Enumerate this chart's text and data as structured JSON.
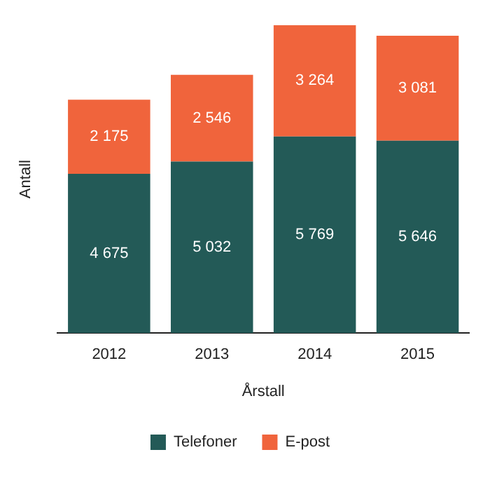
{
  "chart_data": {
    "type": "bar",
    "stacked": true,
    "xlabel": "Årstall",
    "ylabel": "Antall",
    "categories": [
      "2012",
      "2013",
      "2014",
      "2015"
    ],
    "series": [
      {
        "name": "Telefoner",
        "color": "#235a57",
        "values": [
          4675,
          5032,
          5769,
          5646
        ],
        "value_labels": [
          "4 675",
          "5 032",
          "5 769",
          "5 646"
        ]
      },
      {
        "name": "E-post",
        "color": "#f0643c",
        "values": [
          2175,
          2546,
          3264,
          3081
        ],
        "value_labels": [
          "2 175",
          "2 546",
          "3 264",
          "3 081"
        ]
      }
    ],
    "tick_labels": "x",
    "legend": "bottom",
    "grid": false
  }
}
